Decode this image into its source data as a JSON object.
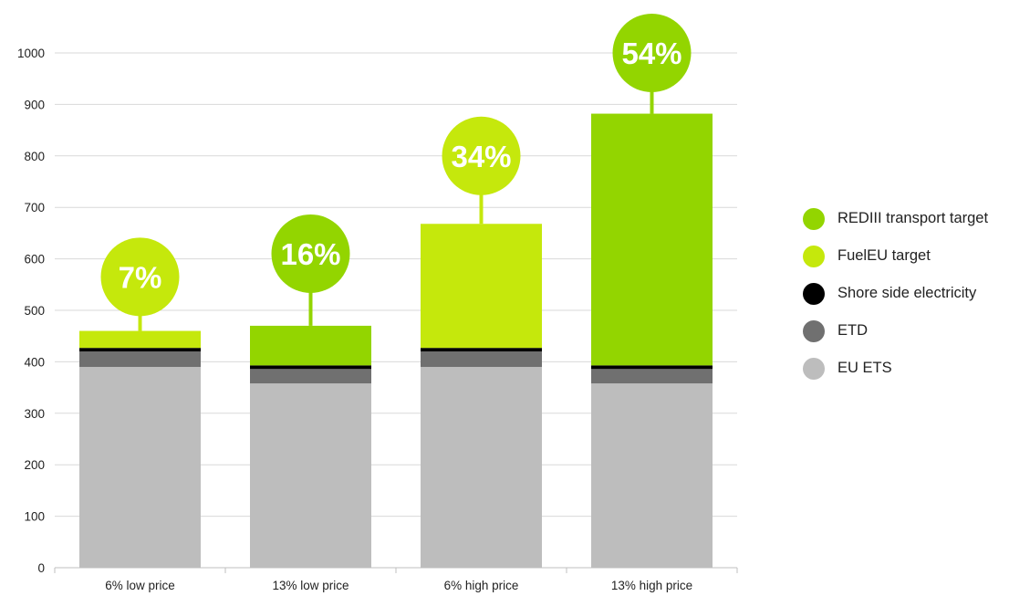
{
  "chart_data": {
    "type": "bar",
    "stacked": true,
    "title": "",
    "xlabel": "",
    "ylabel": "",
    "ylim": [
      0,
      1000
    ],
    "yticks": [
      0,
      100,
      200,
      300,
      400,
      500,
      600,
      700,
      800,
      900,
      1000
    ],
    "grid": true,
    "legend_position": "right",
    "categories": [
      "6% low price",
      "13% low price",
      "6% high price",
      "13% high price"
    ],
    "series": [
      {
        "name": "EU ETS",
        "color": "#bdbdbd",
        "values": [
          390,
          358,
          390,
          358
        ]
      },
      {
        "name": "ETD",
        "color": "#707070",
        "values": [
          30,
          28,
          30,
          28
        ]
      },
      {
        "name": "Shore side electricity",
        "color": "#000000",
        "values": [
          7,
          7,
          7,
          7
        ]
      },
      {
        "name": "FuelEU target",
        "color": "#c5e80c",
        "values": [
          33,
          0,
          241,
          0
        ]
      },
      {
        "name": "REDIII  transport target",
        "color": "#93d500",
        "values": [
          0,
          77,
          0,
          489
        ]
      }
    ],
    "annotations": [
      {
        "category": "6% low price",
        "label": "7%",
        "color": "#c5e80c",
        "level": 565
      },
      {
        "category": "13% low price",
        "label": "16%",
        "color": "#93d500",
        "level": 610
      },
      {
        "category": "6% high price",
        "label": "34%",
        "color": "#c5e80c",
        "level": 800
      },
      {
        "category": "13% high price",
        "label": "54%",
        "color": "#93d500",
        "level": 1000
      }
    ],
    "legend_order": [
      "REDIII  transport target",
      "FuelEU target",
      "Shore side electricity",
      "ETD",
      "EU ETS"
    ]
  }
}
